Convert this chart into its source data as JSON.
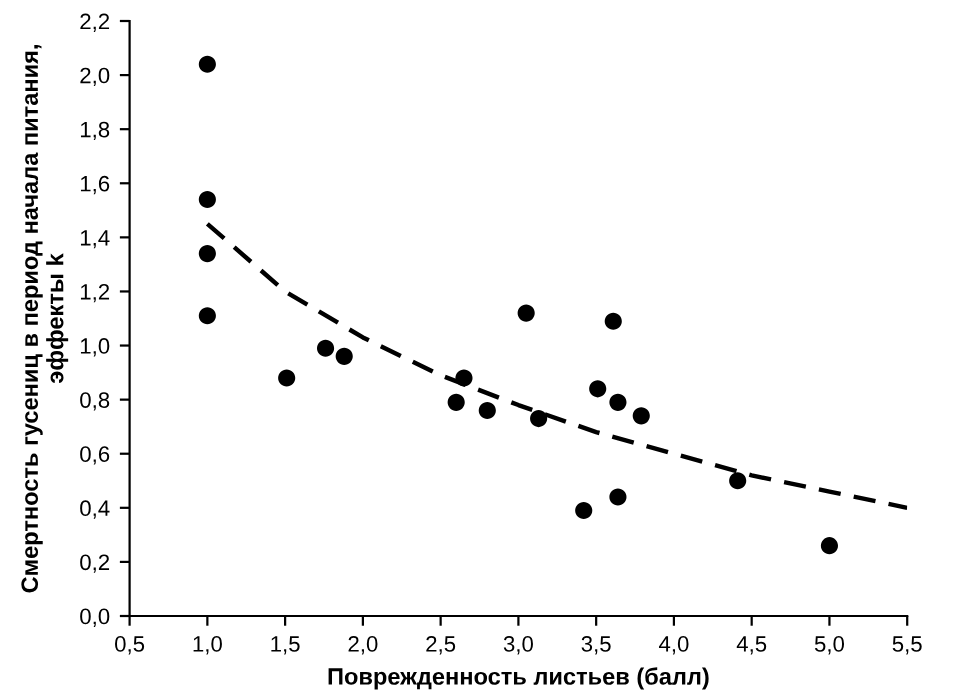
{
  "chart_data": {
    "type": "scatter",
    "xlabel": "Поврежденность листьев (балл)",
    "ylabel": "Смертность гусениц в период начала питания,\nэффекты k",
    "xlim": [
      0.5,
      5.5
    ],
    "xticks": [
      {
        "value": 0.5,
        "label": "0,5"
      },
      {
        "value": 1.0,
        "label": "1,0"
      },
      {
        "value": 1.5,
        "label": "1,5"
      },
      {
        "value": 2.0,
        "label": "2,0"
      },
      {
        "value": 2.5,
        "label": "2,5"
      },
      {
        "value": 3.0,
        "label": "3,0"
      },
      {
        "value": 3.5,
        "label": "3,5"
      },
      {
        "value": 4.0,
        "label": "4,0"
      },
      {
        "value": 4.5,
        "label": "4,5"
      },
      {
        "value": 5.0,
        "label": "5,0"
      },
      {
        "value": 5.5,
        "label": "5,5"
      }
    ],
    "ylim": [
      0,
      2.2
    ],
    "yticks": [
      {
        "value": 0,
        "label": "0,0"
      },
      {
        "value": 0.2,
        "label": "0,2"
      },
      {
        "value": 0.4,
        "label": "0,4"
      },
      {
        "value": 0.6,
        "label": "0,6"
      },
      {
        "value": 0.8,
        "label": "0,8"
      },
      {
        "value": 1.0,
        "label": "1,0"
      },
      {
        "value": 1.2,
        "label": "1,2"
      },
      {
        "value": 1.4,
        "label": "1,4"
      },
      {
        "value": 1.6,
        "label": "1,6"
      },
      {
        "value": 1.8,
        "label": "1,8"
      },
      {
        "value": 2.0,
        "label": "2,0"
      },
      {
        "value": 2.2,
        "label": "2,2"
      }
    ],
    "grid": false,
    "legend": false,
    "series": [
      {
        "color": "#000000",
        "marker": "circle",
        "x": [
          1.0,
          1.0,
          1.0,
          1.0,
          1.51,
          1.76,
          1.88,
          2.6,
          2.65,
          2.8,
          3.05,
          3.13,
          3.42,
          3.51,
          3.61,
          3.64,
          3.64,
          3.79,
          4.41,
          5.0
        ],
        "values": [
          2.04,
          1.54,
          1.34,
          1.11,
          0.88,
          0.99,
          0.96,
          0.79,
          0.88,
          0.76,
          1.12,
          0.73,
          0.39,
          0.84,
          1.09,
          0.79,
          0.44,
          0.74,
          0.5,
          0.26
        ]
      },
      {
        "type": "line",
        "color": "#000000",
        "line_style": "dashed",
        "marker": "none",
        "x": [
          1.0,
          1.5,
          2.0,
          2.5,
          3.0,
          3.5,
          4.0,
          4.5,
          5.0,
          5.5
        ],
        "values": [
          1.45,
          1.2,
          1.03,
          0.89,
          0.78,
          0.68,
          0.6,
          0.52,
          0.46,
          0.4
        ]
      }
    ]
  }
}
